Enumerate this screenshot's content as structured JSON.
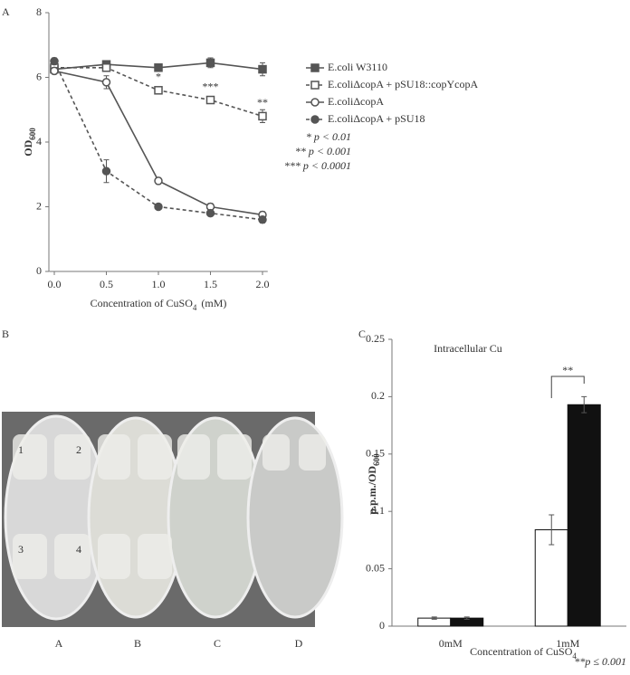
{
  "chart_data": [
    {
      "type": "line",
      "panel": "A",
      "y_label": "OD",
      "y_label_sub": "600",
      "x_label": "Concentration of CuSO",
      "x_label_sub": "4",
      "x_label_end": "(mM)",
      "x": [
        0,
        0.5,
        1,
        1.5,
        2
      ],
      "xlim": [
        -0.05,
        2.05
      ],
      "xticks": [
        {
          "value": 0,
          "label": "0.0"
        },
        {
          "value": 0.5,
          "label": "0.5"
        },
        {
          "value": 1,
          "label": "1.0"
        },
        {
          "value": 1.5,
          "label": "1.5"
        },
        {
          "value": 2,
          "label": "2.0"
        }
      ],
      "ylim": [
        0,
        8
      ],
      "yticks": [
        0,
        2,
        4,
        6,
        8
      ],
      "series": [
        {
          "name": "E.coli W3110",
          "color": "#555555",
          "dash": false,
          "marker": "square",
          "filled": true,
          "values": [
            6.25,
            6.4,
            6.3,
            6.45,
            6.25
          ],
          "errors": [
            0.15,
            0.1,
            0.1,
            0.15,
            0.2
          ]
        },
        {
          "name": "E.coliΔcopA + pSU18::copYcopA",
          "color": "#555555",
          "dash": true,
          "marker": "square",
          "filled": false,
          "values": [
            6.3,
            6.3,
            5.6,
            5.3,
            4.8
          ],
          "errors": [
            0.1,
            0.1,
            0.1,
            0.1,
            0.2
          ]
        },
        {
          "name": "E.coliΔcopA",
          "color": "#555555",
          "dash": false,
          "marker": "circle",
          "filled": false,
          "values": [
            6.2,
            5.85,
            2.8,
            2.0,
            1.75
          ],
          "errors": [
            0.1,
            0.2,
            0.1,
            0.1,
            0.1
          ]
        },
        {
          "name": "E.coliΔcopA + pSU18",
          "color": "#555555",
          "dash": true,
          "marker": "circle",
          "filled": true,
          "values": [
            6.5,
            3.1,
            2.0,
            1.8,
            1.6
          ],
          "errors": [
            0.1,
            0.35,
            0.05,
            0.05,
            0.1
          ]
        }
      ],
      "annotations": [
        {
          "text": "*",
          "x": 1,
          "y": 5.6
        },
        {
          "text": "***",
          "x": 1.5,
          "y": 5.3
        },
        {
          "text": "**",
          "x": 2,
          "y": 4.8
        }
      ],
      "notes": [
        "* p < 0.01",
        "** p < 0.001",
        "*** p < 0.0001"
      ]
    },
    {
      "type": "bar",
      "panel": "C",
      "title": "Intracellular Cu",
      "y_label": "p.p.m./OD",
      "y_label_sub": "600",
      "x_label": "Concentration of CuSO",
      "x_label_sub": "4",
      "categories": [
        "0mM",
        "1mM"
      ],
      "ylim": [
        0,
        0.25
      ],
      "yticks": [
        0,
        0.05,
        0.1,
        0.15,
        0.2,
        0.25
      ],
      "series": [
        {
          "color": "#ffffff",
          "values": [
            0.007,
            0.084
          ],
          "errors": [
            0.001,
            0.013
          ]
        },
        {
          "color": "#111111",
          "values": [
            0.007,
            0.193
          ],
          "errors": [
            0.001,
            0.007
          ]
        }
      ],
      "bracket_label": "**",
      "note": "**p ≤ 0.001"
    }
  ],
  "photo": {
    "panel": "B",
    "quadrants": [
      "1",
      "2",
      "3",
      "4"
    ],
    "plates": [
      "A",
      "B",
      "C",
      "D"
    ]
  }
}
